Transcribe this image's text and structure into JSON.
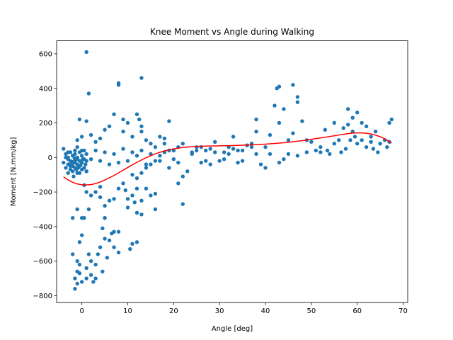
{
  "chart_data": {
    "type": "scatter",
    "title": "Knee Moment vs Angle during Walking",
    "xlabel": "Angle [deg]",
    "ylabel": "Moment [N.mm/kg]",
    "xlim": [
      -5.5,
      71
    ],
    "ylim": [
      -840,
      675
    ],
    "xticks": [
      0,
      10,
      20,
      30,
      40,
      50,
      60,
      70
    ],
    "yticks": [
      -800,
      -600,
      -400,
      -200,
      0,
      200,
      400,
      600
    ],
    "grid": false,
    "legend": "none",
    "colors": {
      "points": "#1f77b4",
      "fit": "#ff0000"
    },
    "series": [
      {
        "kind": "scatter",
        "points": [
          [
            -4,
            50
          ],
          [
            -4,
            -30
          ],
          [
            -3.5,
            -60
          ],
          [
            -3.5,
            20
          ],
          [
            -3,
            -90
          ],
          [
            -3,
            -40
          ],
          [
            -3,
            0
          ],
          [
            -2.5,
            -70
          ],
          [
            -2.5,
            30
          ],
          [
            -2.5,
            -20
          ],
          [
            -2,
            -80
          ],
          [
            -2,
            -50
          ],
          [
            -2,
            10
          ],
          [
            -1.8,
            -110
          ],
          [
            -1.5,
            -30
          ],
          [
            -1.5,
            -60
          ],
          [
            -1.5,
            20
          ],
          [
            -1,
            -40
          ],
          [
            -1,
            0
          ],
          [
            -1,
            -90
          ],
          [
            -1,
            60
          ],
          [
            -0.5,
            -20
          ],
          [
            -0.5,
            -50
          ],
          [
            -0.5,
            30
          ],
          [
            0,
            -70
          ],
          [
            0,
            10
          ],
          [
            0,
            -30
          ],
          [
            0.5,
            -10
          ],
          [
            0.5,
            -60
          ],
          [
            0.5,
            40
          ],
          [
            1,
            -20
          ],
          [
            1,
            -80
          ],
          [
            1,
            20
          ],
          [
            -1.5,
            -20
          ],
          [
            -2.5,
            -40
          ],
          [
            -3,
            -10
          ],
          [
            -1.2,
            -70
          ],
          [
            0.2,
            -10
          ],
          [
            -0.8,
            -60
          ],
          [
            0.8,
            -40
          ],
          [
            -2.2,
            -25
          ],
          [
            -1.6,
            -5
          ],
          [
            -0.3,
            -45
          ],
          [
            -2,
            -560
          ],
          [
            -1.5,
            -700
          ],
          [
            -1.5,
            -760
          ],
          [
            -1,
            -600
          ],
          [
            -1,
            -660
          ],
          [
            -1,
            -730
          ],
          [
            -0.5,
            -620
          ],
          [
            -0.5,
            -670
          ],
          [
            -0.5,
            -490
          ],
          [
            0,
            -450
          ],
          [
            0,
            -720
          ],
          [
            0.5,
            -350
          ],
          [
            1,
            -700
          ],
          [
            1,
            -640
          ],
          [
            1.5,
            -560
          ],
          [
            2,
            -600
          ],
          [
            2,
            -680
          ],
          [
            2.5,
            -720
          ],
          [
            3,
            -620
          ],
          [
            3,
            -700
          ],
          [
            3.5,
            -560
          ],
          [
            4,
            -520
          ],
          [
            4.5,
            -660
          ],
          [
            4.5,
            -410
          ],
          [
            5,
            -350
          ],
          [
            5,
            -470
          ],
          [
            5.5,
            -580
          ],
          [
            6,
            -480
          ],
          [
            6.5,
            -440
          ],
          [
            7,
            -430
          ],
          [
            7,
            -520
          ],
          [
            8,
            -550
          ],
          [
            8,
            -430
          ],
          [
            10.5,
            -530
          ],
          [
            11,
            -500
          ],
          [
            12,
            -490
          ],
          [
            -2,
            -350
          ],
          [
            -1,
            -300
          ],
          [
            0,
            -350
          ],
          [
            0.5,
            -160
          ],
          [
            1,
            -80
          ],
          [
            1,
            -200
          ],
          [
            1.5,
            -300
          ],
          [
            2,
            -220
          ],
          [
            3,
            -200
          ],
          [
            4,
            -230
          ],
          [
            4,
            -170
          ],
          [
            5,
            -350
          ],
          [
            5,
            -280
          ],
          [
            6,
            -250
          ],
          [
            7,
            -240
          ],
          [
            8,
            -180
          ],
          [
            9,
            -150
          ],
          [
            9.5,
            -190
          ],
          [
            10,
            -290
          ],
          [
            10,
            -240
          ],
          [
            11,
            -220
          ],
          [
            11.5,
            -260
          ],
          [
            12,
            -180
          ],
          [
            12,
            -320
          ],
          [
            13,
            -250
          ],
          [
            14,
            -180
          ],
          [
            15,
            -220
          ],
          [
            16,
            -210
          ],
          [
            16,
            -300
          ],
          [
            13,
            -330
          ],
          [
            1,
            610
          ],
          [
            1.5,
            370
          ],
          [
            -0.5,
            220
          ],
          [
            1,
            210
          ],
          [
            -1,
            100
          ],
          [
            0,
            120
          ],
          [
            2,
            130
          ],
          [
            3,
            90
          ],
          [
            4,
            110
          ],
          [
            5,
            160
          ],
          [
            6,
            180
          ],
          [
            7,
            250
          ],
          [
            8,
            420
          ],
          [
            8,
            430
          ],
          [
            9,
            220
          ],
          [
            9,
            150
          ],
          [
            10,
            200
          ],
          [
            11,
            120
          ],
          [
            12,
            250
          ],
          [
            12.5,
            220
          ],
          [
            13,
            460
          ],
          [
            13,
            180
          ],
          [
            13,
            150
          ],
          [
            14,
            100
          ],
          [
            15,
            80
          ],
          [
            17,
            120
          ],
          [
            18,
            110
          ],
          [
            19,
            210
          ],
          [
            21,
            60
          ],
          [
            22,
            80
          ],
          [
            11,
            -100
          ],
          [
            12,
            -120
          ],
          [
            13,
            -90
          ],
          [
            14,
            -60
          ],
          [
            15,
            -40
          ],
          [
            16,
            -20
          ],
          [
            17,
            10
          ],
          [
            18,
            30
          ],
          [
            19,
            40
          ],
          [
            20,
            -10
          ],
          [
            21,
            -150
          ],
          [
            22,
            -270
          ],
          [
            23,
            -80
          ],
          [
            24,
            20
          ],
          [
            25,
            60
          ],
          [
            26,
            -30
          ],
          [
            27,
            40
          ],
          [
            28,
            50
          ],
          [
            29,
            90
          ],
          [
            30,
            -20
          ],
          [
            31,
            30
          ],
          [
            32,
            60
          ],
          [
            33,
            120
          ],
          [
            34,
            40
          ],
          [
            35,
            -20
          ],
          [
            36,
            70
          ],
          [
            37,
            80
          ],
          [
            38,
            220
          ],
          [
            38,
            150
          ],
          [
            39,
            -40
          ],
          [
            40,
            60
          ],
          [
            41,
            130
          ],
          [
            42,
            300
          ],
          [
            42.5,
            400
          ],
          [
            43,
            410
          ],
          [
            43,
            200
          ],
          [
            44,
            280
          ],
          [
            45,
            100
          ],
          [
            46,
            420
          ],
          [
            46,
            140
          ],
          [
            47,
            320
          ],
          [
            47,
            350
          ],
          [
            48,
            210
          ],
          [
            49,
            100
          ],
          [
            50,
            90
          ],
          [
            51,
            40
          ],
          [
            52,
            60
          ],
          [
            53,
            160
          ],
          [
            54,
            20
          ],
          [
            55,
            80
          ],
          [
            55,
            200
          ],
          [
            56,
            100
          ],
          [
            57,
            170
          ],
          [
            58,
            190
          ],
          [
            58,
            280
          ],
          [
            59,
            150
          ],
          [
            59,
            230
          ],
          [
            60,
            260
          ],
          [
            60,
            80
          ],
          [
            61,
            200
          ],
          [
            61,
            100
          ],
          [
            62,
            180
          ],
          [
            62,
            60
          ],
          [
            63,
            120
          ],
          [
            63,
            90
          ],
          [
            64,
            150
          ],
          [
            65,
            80
          ],
          [
            66,
            100
          ],
          [
            67,
            200
          ],
          [
            67,
            90
          ],
          [
            67.5,
            220
          ],
          [
            66.5,
            60
          ],
          [
            64.5,
            30
          ],
          [
            63.5,
            50
          ],
          [
            59.5,
            120
          ],
          [
            58.5,
            100
          ],
          [
            57.5,
            50
          ],
          [
            56.5,
            30
          ],
          [
            53.5,
            40
          ],
          [
            52,
            30
          ],
          [
            49,
            30
          ],
          [
            47,
            10
          ],
          [
            45,
            20
          ],
          [
            44,
            -10
          ],
          [
            43,
            -30
          ],
          [
            41,
            20
          ],
          [
            40,
            -60
          ],
          [
            38,
            20
          ],
          [
            37,
            60
          ],
          [
            35,
            40
          ],
          [
            34,
            -30
          ],
          [
            33,
            50
          ],
          [
            32,
            20
          ],
          [
            31,
            -10
          ],
          [
            29,
            30
          ],
          [
            28,
            -40
          ],
          [
            27,
            -20
          ],
          [
            26,
            60
          ],
          [
            25,
            40
          ],
          [
            24,
            30
          ],
          [
            22,
            -110
          ],
          [
            21,
            -30
          ],
          [
            20,
            40
          ],
          [
            19,
            -60
          ],
          [
            18,
            80
          ],
          [
            17,
            -20
          ],
          [
            16,
            60
          ],
          [
            15,
            20
          ],
          [
            14,
            -40
          ],
          [
            13,
            40
          ],
          [
            12,
            10
          ],
          [
            11,
            30
          ],
          [
            10,
            -20
          ],
          [
            9,
            50
          ],
          [
            8,
            -30
          ],
          [
            7,
            20
          ],
          [
            6,
            -40
          ],
          [
            5,
            30
          ],
          [
            4,
            -20
          ],
          [
            3,
            40
          ],
          [
            2,
            -10
          ],
          [
            1,
            -20
          ],
          [
            0,
            40
          ],
          [
            -0.5,
            -90
          ],
          [
            -1.5,
            40
          ],
          [
            -2.5,
            -50
          ],
          [
            -3.5,
            0
          ],
          [
            -3,
            30
          ],
          [
            -2,
            -30
          ],
          [
            -1,
            -10
          ]
        ]
      },
      {
        "kind": "line",
        "points": [
          [
            -4,
            -112
          ],
          [
            -3,
            -130
          ],
          [
            -2,
            -144
          ],
          [
            -1,
            -153
          ],
          [
            0,
            -158
          ],
          [
            1,
            -159
          ],
          [
            2,
            -157
          ],
          [
            3,
            -151
          ],
          [
            4,
            -142
          ],
          [
            5,
            -131
          ],
          [
            6,
            -118
          ],
          [
            7,
            -104
          ],
          [
            8,
            -89
          ],
          [
            10,
            -58
          ],
          [
            12,
            -28
          ],
          [
            14,
            -1
          ],
          [
            16,
            21
          ],
          [
            18,
            38
          ],
          [
            20,
            50
          ],
          [
            22,
            58
          ],
          [
            24,
            62
          ],
          [
            26,
            65
          ],
          [
            28,
            66
          ],
          [
            30,
            67
          ],
          [
            32,
            68
          ],
          [
            34,
            70
          ],
          [
            36,
            72
          ],
          [
            38,
            74
          ],
          [
            40,
            77
          ],
          [
            42,
            81
          ],
          [
            44,
            85
          ],
          [
            46,
            91
          ],
          [
            48,
            97
          ],
          [
            50,
            105
          ],
          [
            52,
            113
          ],
          [
            54,
            121
          ],
          [
            56,
            130
          ],
          [
            57,
            134
          ],
          [
            58,
            138
          ],
          [
            59,
            141
          ],
          [
            60,
            142
          ],
          [
            61,
            142
          ],
          [
            62,
            140
          ],
          [
            63,
            136
          ],
          [
            64,
            129
          ],
          [
            65,
            120
          ],
          [
            66,
            108
          ],
          [
            67,
            92
          ],
          [
            67.5,
            83
          ]
        ]
      }
    ]
  }
}
